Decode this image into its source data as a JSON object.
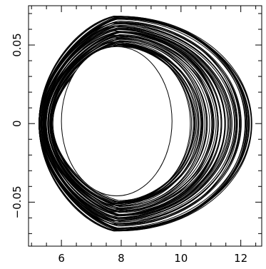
{
  "chart_data": {
    "type": "line",
    "title": "",
    "xlabel": "",
    "ylabel": "",
    "xlim": [
      4.9,
      12.7
    ],
    "ylim": [
      -0.078,
      0.075
    ],
    "x_ticks": [
      {
        "value": 6,
        "label": "6"
      },
      {
        "value": 8,
        "label": "8"
      },
      {
        "value": 10,
        "label": "10"
      },
      {
        "value": 12,
        "label": "12"
      }
    ],
    "y_ticks": [
      {
        "value": 0.05,
        "label": "0.05"
      },
      {
        "value": 0,
        "label": "0"
      },
      {
        "value": -0.05,
        "label": "−0.05"
      }
    ],
    "grid": false,
    "legend": "none",
    "line_color": "#000000",
    "series": [
      {
        "curve": "quasi-periodic orbit (superposed loops)",
        "loops": 70,
        "x_min_range": [
          5.25,
          5.75
        ],
        "x_max_range": [
          10.3,
          12.4
        ],
        "y_extent_range": [
          0.048,
          0.069
        ],
        "inner_hole": {
          "x": [
            6.0,
            9.7
          ],
          "y": [
            -0.046,
            0.049
          ]
        }
      }
    ]
  }
}
